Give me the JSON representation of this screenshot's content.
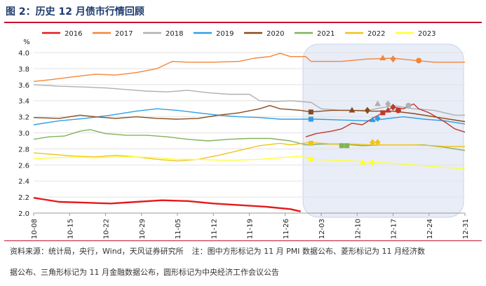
{
  "header": {
    "title": "图 2：历史 12 月债市行情回顾"
  },
  "footer": {
    "source": "资料来源：统计局，央行，Wind，天风证券研究所",
    "note_line1": "注：图中方形标记为 11 月 PMI 数据公布、菱形标记为 11 月经济数",
    "note_line2": "据公布、三角形标记为 11 月金融数据公布，圆形标记为中央经济工作会议公告"
  },
  "chart_data": {
    "type": "line",
    "title": "历史 12 月债市行情回顾",
    "ylabel": "%",
    "xlabel": "",
    "ylim": [
      2.0,
      4.0
    ],
    "yticks": [
      "2.0",
      "2.2",
      "2.4",
      "2.6",
      "2.8",
      "3.0",
      "3.2",
      "3.4",
      "3.6",
      "3.8",
      "4.0"
    ],
    "x_ticks": [
      "10-08",
      "10-15",
      "10-22",
      "10-29",
      "11-05",
      "11-12",
      "11-19",
      "11-26",
      "12-03",
      "12-10",
      "12-17",
      "12-24",
      "12-31"
    ],
    "x_range_days": [
      0,
      84
    ],
    "highlight_region": {
      "from_day": 53,
      "to_day": 84,
      "color": "#e8edf7",
      "border": "#c9d3e8"
    },
    "legend_position": "top",
    "series": [
      {
        "name": "2016",
        "color": "#e41a1c",
        "width": 2.4,
        "points": [
          [
            0,
            2.19
          ],
          [
            2,
            2.17
          ],
          [
            5,
            2.14
          ],
          [
            10,
            2.13
          ],
          [
            15,
            2.12
          ],
          [
            20,
            2.14
          ],
          [
            25,
            2.16
          ],
          [
            30,
            2.15
          ],
          [
            35,
            2.12
          ],
          [
            40,
            2.1
          ],
          [
            45,
            2.08
          ],
          [
            50,
            2.05
          ],
          [
            52,
            2.02
          ]
        ]
      },
      {
        "name": "2017",
        "color": "#f4853a",
        "width": 1.4,
        "points": [
          [
            0,
            3.64
          ],
          [
            3,
            3.66
          ],
          [
            8,
            3.7
          ],
          [
            12,
            3.73
          ],
          [
            16,
            3.72
          ],
          [
            20,
            3.75
          ],
          [
            24,
            3.8
          ],
          [
            27,
            3.89
          ],
          [
            30,
            3.88
          ],
          [
            35,
            3.88
          ],
          [
            40,
            3.89
          ],
          [
            43,
            3.93
          ],
          [
            46,
            3.95
          ],
          [
            48,
            3.99
          ],
          [
            50,
            3.95
          ],
          [
            53,
            3.95
          ],
          [
            54,
            3.89
          ],
          [
            60,
            3.89
          ],
          [
            65,
            3.92
          ],
          [
            70,
            3.93
          ],
          [
            73,
            3.91
          ],
          [
            78,
            3.88
          ],
          [
            84,
            3.88
          ]
        ]
      },
      {
        "name": "2018",
        "color": "#b0b0b0",
        "width": 1.4,
        "points": [
          [
            0,
            3.6
          ],
          [
            5,
            3.58
          ],
          [
            10,
            3.57
          ],
          [
            14,
            3.56
          ],
          [
            18,
            3.54
          ],
          [
            22,
            3.52
          ],
          [
            26,
            3.51
          ],
          [
            30,
            3.53
          ],
          [
            34,
            3.5
          ],
          [
            38,
            3.48
          ],
          [
            42,
            3.48
          ],
          [
            44,
            3.4
          ],
          [
            47,
            3.39
          ],
          [
            50,
            3.4
          ],
          [
            54,
            3.38
          ],
          [
            56,
            3.3
          ],
          [
            60,
            3.28
          ],
          [
            65,
            3.28
          ],
          [
            70,
            3.34
          ],
          [
            74,
            3.3
          ],
          [
            78,
            3.28
          ],
          [
            82,
            3.22
          ],
          [
            84,
            3.22
          ]
        ]
      },
      {
        "name": "2019",
        "color": "#2e9fe6",
        "width": 1.4,
        "points": [
          [
            0,
            3.1
          ],
          [
            5,
            3.15
          ],
          [
            10,
            3.18
          ],
          [
            15,
            3.22
          ],
          [
            20,
            3.27
          ],
          [
            24,
            3.3
          ],
          [
            28,
            3.28
          ],
          [
            32,
            3.25
          ],
          [
            36,
            3.22
          ],
          [
            40,
            3.2
          ],
          [
            44,
            3.19
          ],
          [
            48,
            3.17
          ],
          [
            52,
            3.17
          ],
          [
            55,
            3.17
          ],
          [
            60,
            3.16
          ],
          [
            65,
            3.15
          ],
          [
            68,
            3.17
          ],
          [
            72,
            3.2
          ],
          [
            76,
            3.17
          ],
          [
            80,
            3.15
          ],
          [
            84,
            3.11
          ]
        ]
      },
      {
        "name": "2020",
        "color": "#8b4a1c",
        "width": 1.4,
        "points": [
          [
            0,
            3.19
          ],
          [
            5,
            3.18
          ],
          [
            9,
            3.22
          ],
          [
            12,
            3.2
          ],
          [
            16,
            3.18
          ],
          [
            20,
            3.2
          ],
          [
            24,
            3.18
          ],
          [
            28,
            3.17
          ],
          [
            32,
            3.18
          ],
          [
            36,
            3.22
          ],
          [
            40,
            3.25
          ],
          [
            44,
            3.3
          ],
          [
            46,
            3.34
          ],
          [
            48,
            3.3
          ],
          [
            52,
            3.28
          ],
          [
            54,
            3.26
          ],
          [
            58,
            3.28
          ],
          [
            62,
            3.28
          ],
          [
            66,
            3.27
          ],
          [
            70,
            3.27
          ],
          [
            74,
            3.24
          ],
          [
            80,
            3.18
          ],
          [
            84,
            3.14
          ]
        ]
      },
      {
        "name": "2021",
        "color": "#7fb35a",
        "width": 1.4,
        "points": [
          [
            0,
            2.92
          ],
          [
            3,
            2.95
          ],
          [
            6,
            2.96
          ],
          [
            9,
            3.02
          ],
          [
            11,
            3.04
          ],
          [
            14,
            2.99
          ],
          [
            18,
            2.97
          ],
          [
            22,
            2.97
          ],
          [
            26,
            2.95
          ],
          [
            30,
            2.92
          ],
          [
            34,
            2.9
          ],
          [
            38,
            2.92
          ],
          [
            42,
            2.93
          ],
          [
            46,
            2.93
          ],
          [
            50,
            2.9
          ],
          [
            53,
            2.85
          ],
          [
            56,
            2.86
          ],
          [
            60,
            2.86
          ],
          [
            64,
            2.84
          ],
          [
            68,
            2.85
          ],
          [
            72,
            2.85
          ],
          [
            76,
            2.85
          ],
          [
            80,
            2.82
          ],
          [
            84,
            2.78
          ]
        ]
      },
      {
        "name": "2022",
        "color": "#f0c419",
        "width": 1.4,
        "points": [
          [
            0,
            2.75
          ],
          [
            4,
            2.73
          ],
          [
            8,
            2.71
          ],
          [
            12,
            2.7
          ],
          [
            16,
            2.72
          ],
          [
            20,
            2.7
          ],
          [
            24,
            2.67
          ],
          [
            28,
            2.65
          ],
          [
            32,
            2.67
          ],
          [
            36,
            2.72
          ],
          [
            40,
            2.78
          ],
          [
            44,
            2.84
          ],
          [
            48,
            2.87
          ],
          [
            50,
            2.85
          ],
          [
            54,
            2.88
          ],
          [
            58,
            2.86
          ],
          [
            62,
            2.86
          ],
          [
            66,
            2.85
          ],
          [
            70,
            2.85
          ],
          [
            74,
            2.85
          ],
          [
            78,
            2.84
          ],
          [
            80,
            2.83
          ],
          [
            84,
            2.83
          ]
        ]
      },
      {
        "name": "2023",
        "color": "#ffff33",
        "width": 1.4,
        "points": [
          [
            0,
            2.68
          ],
          [
            4,
            2.69
          ],
          [
            8,
            2.7
          ],
          [
            12,
            2.69
          ],
          [
            16,
            2.7
          ],
          [
            20,
            2.7
          ],
          [
            24,
            2.69
          ],
          [
            28,
            2.67
          ],
          [
            32,
            2.67
          ],
          [
            36,
            2.66
          ],
          [
            40,
            2.66
          ],
          [
            44,
            2.67
          ],
          [
            48,
            2.69
          ],
          [
            52,
            2.71
          ],
          [
            54,
            2.67
          ],
          [
            58,
            2.66
          ],
          [
            62,
            2.65
          ],
          [
            66,
            2.63
          ],
          [
            70,
            2.62
          ],
          [
            74,
            2.6
          ],
          [
            78,
            2.58
          ],
          [
            82,
            2.56
          ],
          [
            84,
            2.55
          ]
        ]
      },
      {
        "name": "2016-post",
        "parent": "2016",
        "color": "#c0392b",
        "width": 1.4,
        "legend": false,
        "points": [
          [
            53,
            2.95
          ],
          [
            55,
            2.99
          ],
          [
            58,
            3.02
          ],
          [
            60,
            3.05
          ],
          [
            62,
            3.12
          ],
          [
            64,
            3.1
          ],
          [
            66,
            3.18
          ],
          [
            68,
            3.25
          ],
          [
            70,
            3.32
          ],
          [
            72,
            3.3
          ],
          [
            74,
            3.36
          ],
          [
            75,
            3.3
          ],
          [
            77,
            3.25
          ],
          [
            80,
            3.14
          ],
          [
            82,
            3.05
          ],
          [
            84,
            3.01
          ]
        ]
      }
    ],
    "markers": [
      {
        "series": "2017",
        "shape": "triangle",
        "day": 68,
        "value": 3.93
      },
      {
        "series": "2017",
        "shape": "diamond",
        "day": 70,
        "value": 3.92
      },
      {
        "series": "2017",
        "shape": "circle",
        "day": 75,
        "value": 3.9
      },
      {
        "series": "2018",
        "shape": "triangle",
        "day": 67,
        "value": 3.36
      },
      {
        "series": "2018",
        "shape": "diamond",
        "day": 69,
        "value": 3.36
      },
      {
        "series": "2018",
        "shape": "circle",
        "day": 73,
        "value": 3.34
      },
      {
        "series": "2019",
        "shape": "square",
        "day": 54,
        "value": 3.17
      },
      {
        "series": "2019",
        "shape": "triangle",
        "day": 66,
        "value": 3.16
      },
      {
        "series": "2019",
        "shape": "diamond",
        "day": 67,
        "value": 3.18
      },
      {
        "series": "2020",
        "shape": "square",
        "day": 54,
        "value": 3.26
      },
      {
        "series": "2020",
        "shape": "triangle",
        "day": 62,
        "value": 3.28
      },
      {
        "series": "2020",
        "shape": "diamond",
        "day": 65,
        "value": 3.28
      },
      {
        "series": "2020",
        "shape": "circle",
        "day": 71,
        "value": 3.28
      },
      {
        "series": "2021",
        "shape": "square",
        "day": 60,
        "value": 2.84
      },
      {
        "series": "2021",
        "shape": "square",
        "day": 61,
        "value": 2.84
      },
      {
        "series": "2022",
        "shape": "square",
        "day": 54,
        "value": 2.87
      },
      {
        "series": "2022",
        "shape": "diamond",
        "day": 66,
        "value": 2.88
      },
      {
        "series": "2022",
        "shape": "diamond",
        "day": 67,
        "value": 2.88
      },
      {
        "series": "2023",
        "shape": "square",
        "day": 54,
        "value": 2.67
      },
      {
        "series": "2023",
        "shape": "triangle",
        "day": 64,
        "value": 2.63
      },
      {
        "series": "2023",
        "shape": "diamond",
        "day": 66,
        "value": 2.63
      },
      {
        "series": "2016-post",
        "shape": "square",
        "day": 68,
        "value": 3.25
      },
      {
        "series": "2016-post",
        "shape": "triangle",
        "day": 69,
        "value": 3.28
      },
      {
        "series": "2016-post",
        "shape": "diamond",
        "day": 70,
        "value": 3.32
      },
      {
        "series": "2016-post",
        "shape": "circle",
        "day": 71,
        "value": 3.28
      }
    ]
  }
}
